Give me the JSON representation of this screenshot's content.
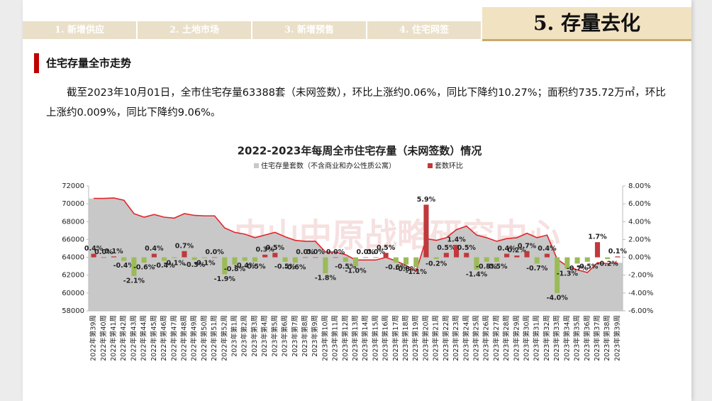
{
  "nav": {
    "tabs": [
      "1. 新增供应",
      "2. 土地市场",
      "3. 新增预售",
      "4. 住宅网签"
    ],
    "current": "5. 存量去化"
  },
  "section": {
    "heading": "住宅存量全市走势"
  },
  "paragraph": "截至2023年10月01日，全市住宅存量63388套（未网签数），环比上涨约0.06%，同比下降约10.27%；面积约735.72万㎡，环比上涨约0.009%，同比下降约9.06%。",
  "watermark": "中山中原战略研究中心",
  "chart_data": {
    "type": "combo",
    "title": "2022-2023年每周全市住宅存量（未网签数）情况",
    "categories": [
      "2022年第39周",
      "2022年第40周",
      "2022年第41周",
      "2022年第42周",
      "2022年第43周",
      "2022年第44周",
      "2022年第45周",
      "2022年第46周",
      "2022年第47周",
      "2022年第48周",
      "2022年第49周",
      "2022年第50周",
      "2022年第51周",
      "2022年第52周",
      "2023年第1周",
      "2023年第2周",
      "2023年第3周",
      "2023年第4周",
      "2023年第5周",
      "2023年第6周",
      "2023年第7周",
      "2023年第8周",
      "2023年第9周",
      "2023年第10周",
      "2023年第11周",
      "2023年第12周",
      "2023年第13周",
      "2023年第14周",
      "2023年第15周",
      "2023年第16周",
      "2023年第17周",
      "2023年第18周",
      "2023年第19周",
      "2023年第20周",
      "2023年第21周",
      "2023年第22周",
      "2023年第23周",
      "2023年第24周",
      "2023年第25周",
      "2023年第26周",
      "2023年第27周",
      "2023年第28周",
      "2023年第29周",
      "2023年第30周",
      "2023年第31周",
      "2023年第32周",
      "2023年第33周",
      "2023年第34周",
      "2023年第35周",
      "2023年第36周",
      "2023年第37周",
      "2023年第38周",
      "2023年第39周"
    ],
    "series": [
      {
        "name": "住宅存量套数（不含商业和办公性质公寓）",
        "kind": "area",
        "color": "#c8c8c8",
        "line_color": "#e3262b",
        "values": [
          70600,
          70600,
          70650,
          70400,
          68900,
          68500,
          68800,
          68500,
          68400,
          68900,
          68700,
          68650,
          68650,
          67300,
          66800,
          66600,
          66200,
          66500,
          66800,
          66300,
          65900,
          65800,
          65800,
          64600,
          64600,
          64300,
          63700,
          63700,
          63700,
          64000,
          63600,
          63100,
          62400,
          66100,
          65900,
          66200,
          67100,
          67500,
          66500,
          66200,
          65800,
          66100,
          66200,
          66700,
          66200,
          66500,
          63800,
          63000,
          62600,
          62300,
          63400,
          63300,
          63388
        ]
      },
      {
        "name": "套数环比",
        "kind": "bar",
        "axis": "y2",
        "color": "#c0393b",
        "negative_color": "#9bbb59",
        "values": [
          0.4,
          0.0,
          0.1,
          -0.4,
          -2.1,
          -0.6,
          0.4,
          -0.4,
          -0.1,
          0.7,
          -0.3,
          -0.1,
          0.0,
          -1.9,
          -0.8,
          -0.4,
          -0.5,
          0.3,
          0.5,
          -0.5,
          -0.6,
          0.0,
          0.0,
          -1.8,
          0.0,
          -0.5,
          -1.0,
          0.0,
          0.0,
          0.5,
          -0.6,
          -0.8,
          -1.1,
          5.9,
          -0.2,
          0.5,
          1.4,
          0.5,
          -1.4,
          -0.5,
          -0.5,
          0.4,
          0.2,
          0.7,
          -0.7,
          0.4,
          -4.0,
          -1.3,
          -0.7,
          -0.5,
          1.7,
          -0.2,
          0.1
        ],
        "value_labels": [
          "0.4%",
          "0.0%",
          "0.1%",
          "-0.4%",
          "-2.1%",
          "-0.6%",
          "0.4%",
          "-0.4%",
          "-0.1%",
          "0.7%",
          "-0.3%",
          "-0.1%",
          "0.0%",
          "-1.9%",
          "-0.8%",
          "-0.4%",
          "-0.5%",
          "0.3%",
          "0.5%",
          "-0.5%",
          "-0.6%",
          "0.0%",
          "0.0%",
          "-1.8%",
          "0.0%",
          "-0.5%",
          "-1.0%",
          "0.0%",
          "0.0%",
          "0.5%",
          "-0.6%",
          "-0.8%",
          "-1.1%",
          "5.9%",
          "-0.2%",
          "0.5%",
          "1.4%",
          "0.5%",
          "-1.4%",
          "-0.5%",
          "-0.5%",
          "0.4%",
          "0.2%",
          "0.7%",
          "-0.7%",
          "0.4%",
          "-4.0%",
          "-1.3%",
          "-0.7%",
          "-0.5%",
          "1.7%",
          "-0.2%",
          "0.1%"
        ]
      }
    ],
    "ylim": [
      58000,
      72000
    ],
    "yticks": [
      58000,
      60000,
      62000,
      64000,
      66000,
      68000,
      70000,
      72000
    ],
    "y2lim": [
      -6,
      8
    ],
    "y2ticks": [
      {
        "value": -6,
        "label": "-6.00%"
      },
      {
        "value": -4,
        "label": "-4.00%"
      },
      {
        "value": -2,
        "label": "-2.00%"
      },
      {
        "value": 0,
        "label": "0.00%"
      },
      {
        "value": 2,
        "label": "2.00%"
      },
      {
        "value": 4,
        "label": "4.00%"
      },
      {
        "value": 6,
        "label": "6.00%"
      },
      {
        "value": 8,
        "label": "8.00%"
      }
    ]
  }
}
